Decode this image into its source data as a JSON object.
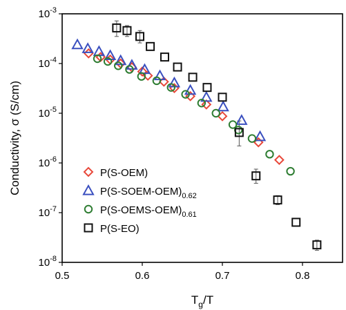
{
  "chart_data": {
    "type": "scatter",
    "x_axis": {
      "label_main": "T",
      "label_sub": "g",
      "label_tail": "/T",
      "range": [
        0.5,
        0.85
      ],
      "ticks": [
        0.5,
        0.6,
        0.7,
        0.8
      ],
      "tick_labels": [
        "0.5",
        "0.6",
        "0.7",
        "0.8"
      ]
    },
    "y_axis": {
      "label": "Conductivity, σ (S/cm)",
      "scale": "log",
      "range": [
        1e-08,
        0.001
      ],
      "tick_exponents": [
        -3,
        -4,
        -5,
        -6,
        -7,
        -8
      ],
      "tick_base": "10"
    },
    "grid": false,
    "legend_position": "bottom-left",
    "series": [
      {
        "name_main": "P(S-OEM)",
        "name_sub": "",
        "marker": "diamond",
        "color": "#e8483a",
        "points": [
          {
            "x": 0.533,
            "y": 0.00016
          },
          {
            "x": 0.548,
            "y": 0.000135
          },
          {
            "x": 0.56,
            "y": 0.00012
          },
          {
            "x": 0.573,
            "y": 0.0001
          },
          {
            "x": 0.587,
            "y": 8.4e-05
          },
          {
            "x": 0.6,
            "y": 6.9e-05
          },
          {
            "x": 0.607,
            "y": 5.7e-05
          },
          {
            "x": 0.627,
            "y": 4.3e-05
          },
          {
            "x": 0.64,
            "y": 3.2e-05
          },
          {
            "x": 0.66,
            "y": 2.2e-05
          },
          {
            "x": 0.68,
            "y": 1.5e-05
          },
          {
            "x": 0.7,
            "y": 8.7e-06
          },
          {
            "x": 0.745,
            "y": 2.6e-06
          },
          {
            "x": 0.771,
            "y": 1.15e-06
          }
        ]
      },
      {
        "name_main": "P(S-SOEM-OEM)",
        "name_sub": "0.62",
        "marker": "triangle",
        "color": "#3a4fbf",
        "points": [
          {
            "x": 0.519,
            "y": 0.00024
          },
          {
            "x": 0.532,
            "y": 0.0002
          },
          {
            "x": 0.546,
            "y": 0.000175
          },
          {
            "x": 0.56,
            "y": 0.000145
          },
          {
            "x": 0.573,
            "y": 0.000115
          },
          {
            "x": 0.587,
            "y": 9.3e-05
          },
          {
            "x": 0.603,
            "y": 7.6e-05
          },
          {
            "x": 0.622,
            "y": 5.7e-05
          },
          {
            "x": 0.64,
            "y": 4.1e-05
          },
          {
            "x": 0.66,
            "y": 2.9e-05
          },
          {
            "x": 0.68,
            "y": 2.1e-05
          },
          {
            "x": 0.701,
            "y": 1.35e-05
          },
          {
            "x": 0.724,
            "y": 7.2e-06
          },
          {
            "x": 0.747,
            "y": 3.4e-06
          }
        ]
      },
      {
        "name_main": "P(S-OEMS-OEM)",
        "name_sub": "0.61",
        "marker": "circle",
        "color": "#2e7d32",
        "points": [
          {
            "x": 0.544,
            "y": 0.000125
          },
          {
            "x": 0.557,
            "y": 0.00011
          },
          {
            "x": 0.57,
            "y": 9e-05
          },
          {
            "x": 0.584,
            "y": 7.6e-05
          },
          {
            "x": 0.599,
            "y": 5.5e-05
          },
          {
            "x": 0.618,
            "y": 4.5e-05
          },
          {
            "x": 0.636,
            "y": 3.3e-05
          },
          {
            "x": 0.654,
            "y": 2.4e-05
          },
          {
            "x": 0.674,
            "y": 1.6e-05
          },
          {
            "x": 0.692,
            "y": 1e-05
          },
          {
            "x": 0.713,
            "y": 5.9e-06
          },
          {
            "x": 0.72,
            "y": 4.6e-06
          },
          {
            "x": 0.737,
            "y": 3.1e-06
          },
          {
            "x": 0.759,
            "y": 1.5e-06
          },
          {
            "x": 0.785,
            "y": 6.8e-07
          }
        ]
      },
      {
        "name_main": "P(S-EO)",
        "name_sub": "",
        "marker": "square",
        "color": "#111111",
        "points": [
          {
            "x": 0.568,
            "y": 0.00052,
            "err_hi": 0.00072,
            "err_lo": 0.00035
          },
          {
            "x": 0.581,
            "y": 0.00046,
            "err_hi": 0.00058,
            "err_lo": 0.00035
          },
          {
            "x": 0.597,
            "y": 0.00035,
            "err_hi": 0.00046,
            "err_lo": 0.00026
          },
          {
            "x": 0.61,
            "y": 0.00022
          },
          {
            "x": 0.628,
            "y": 0.000135
          },
          {
            "x": 0.644,
            "y": 8.5e-05
          },
          {
            "x": 0.663,
            "y": 5.3e-05
          },
          {
            "x": 0.681,
            "y": 3.3e-05
          },
          {
            "x": 0.7,
            "y": 2.1e-05
          },
          {
            "x": 0.721,
            "y": 4.1e-06,
            "err_hi": 7e-06,
            "err_lo": 2.2e-06
          },
          {
            "x": 0.742,
            "y": 5.5e-07,
            "err_hi": 7.5e-07,
            "err_lo": 3.9e-07
          },
          {
            "x": 0.769,
            "y": 1.8e-07,
            "err_hi": 2.2e-07,
            "err_lo": 1.45e-07
          },
          {
            "x": 0.792,
            "y": 6.4e-08
          },
          {
            "x": 0.818,
            "y": 2.25e-08,
            "err_hi": 2.8e-08,
            "err_lo": 1.75e-08
          }
        ]
      }
    ]
  }
}
